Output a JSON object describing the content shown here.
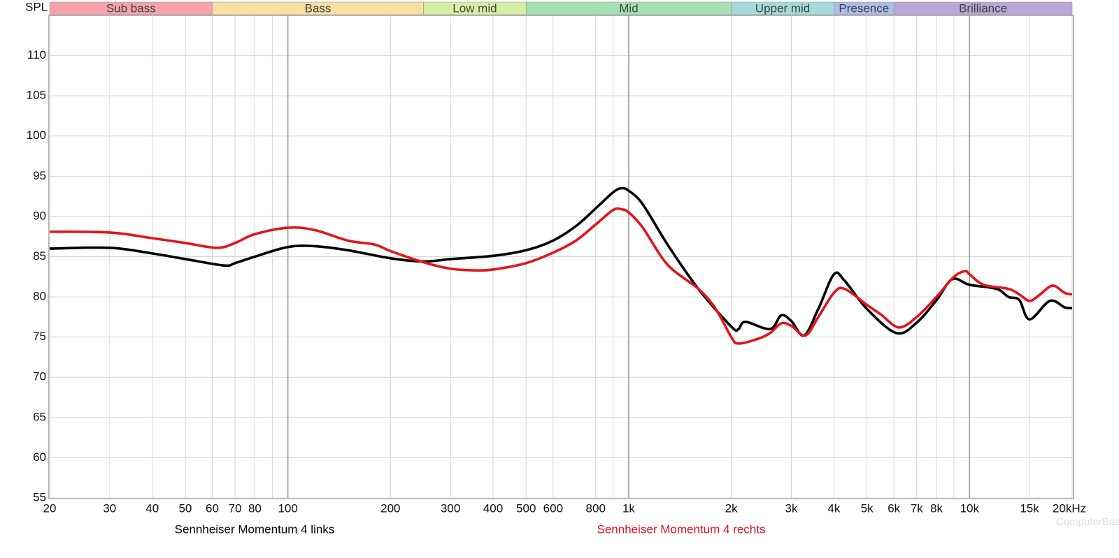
{
  "chart_data": {
    "type": "line",
    "y_label": "SPL",
    "xscale": "log",
    "xlim": [
      20,
      20000
    ],
    "ylim": [
      55,
      115
    ],
    "grid": true,
    "xticks": [
      20,
      30,
      40,
      50,
      60,
      70,
      80,
      100,
      200,
      300,
      400,
      500,
      600,
      800,
      {
        "value": 1000,
        "label": "1k"
      },
      {
        "value": 2000,
        "label": "2k"
      },
      {
        "value": 3000,
        "label": "3k"
      },
      {
        "value": 4000,
        "label": "4k"
      },
      {
        "value": 5000,
        "label": "5k"
      },
      {
        "value": 6000,
        "label": "6k"
      },
      {
        "value": 7000,
        "label": "7k"
      },
      {
        "value": 8000,
        "label": "8k"
      },
      {
        "value": 10000,
        "label": "10k"
      },
      {
        "value": 15000,
        "label": "15k"
      },
      {
        "value": 20000,
        "label": "20kHz"
      }
    ],
    "x_minor_ticks": [
      90,
      900,
      9000
    ],
    "yticks": [
      55,
      60,
      65,
      70,
      75,
      80,
      85,
      90,
      95,
      100,
      105,
      110
    ],
    "bands": [
      {
        "name": "Sub bass",
        "start": 20,
        "end": 60,
        "color": "#f4a3aa"
      },
      {
        "name": "Bass",
        "start": 60,
        "end": 250,
        "color": "#f7e0a2"
      },
      {
        "name": "Low mid",
        "start": 250,
        "end": 500,
        "color": "#d8eea6"
      },
      {
        "name": "Mid",
        "start": 500,
        "end": 2000,
        "color": "#a6e2b1"
      },
      {
        "name": "Upper mid",
        "start": 2000,
        "end": 4000,
        "color": "#a4dbd8"
      },
      {
        "name": "Presence",
        "start": 4000,
        "end": 6000,
        "color": "#abbde8"
      },
      {
        "name": "Brilliance",
        "start": 6000,
        "end": 20000,
        "color": "#b9a8d6"
      }
    ],
    "series": [
      {
        "name": "Sennheiser Momentum 4 links",
        "color": "#000000",
        "x": [
          20,
          30,
          40,
          50,
          65,
          70,
          80,
          100,
          120,
          150,
          200,
          250,
          300,
          400,
          500,
          600,
          700,
          800,
          900,
          950,
          1000,
          1100,
          1300,
          1600,
          2000,
          2100,
          2200,
          2600,
          2800,
          3000,
          3270,
          3600,
          4000,
          4300,
          5000,
          6100,
          7000,
          8000,
          8900,
          10000,
          12000,
          13000,
          14000,
          15000,
          17200,
          19000,
          20000
        ],
        "values": [
          86.0,
          86.1,
          85.4,
          84.7,
          83.9,
          84.2,
          85.0,
          86.2,
          86.3,
          85.8,
          84.8,
          84.4,
          84.7,
          85.1,
          85.8,
          87.0,
          88.8,
          91.0,
          93.0,
          93.5,
          93.2,
          91.5,
          86.5,
          81.0,
          76.3,
          76.0,
          76.9,
          76.0,
          77.7,
          77.0,
          75.2,
          78.5,
          82.8,
          82.0,
          78.5,
          75.5,
          76.8,
          79.6,
          82.2,
          81.5,
          81.0,
          80.0,
          79.6,
          77.2,
          79.5,
          78.7,
          78.6
        ]
      },
      {
        "name": "Sennheiser Momentum 4 rechts",
        "color": "#e3141b",
        "x": [
          20,
          30,
          40,
          50,
          62,
          70,
          80,
          100,
          120,
          150,
          180,
          200,
          250,
          300,
          350,
          400,
          500,
          600,
          700,
          800,
          900,
          950,
          1000,
          1100,
          1300,
          1600,
          1800,
          2000,
          2100,
          2400,
          2600,
          2800,
          3000,
          3300,
          3600,
          4000,
          4300,
          5000,
          5500,
          6200,
          7000,
          8000,
          9000,
          9700,
          10000,
          11000,
          13000,
          14000,
          15000,
          16000,
          17500,
          19000,
          20000
        ],
        "values": [
          88.1,
          88.0,
          87.3,
          86.7,
          86.1,
          86.7,
          87.8,
          88.6,
          88.3,
          87.0,
          86.5,
          85.7,
          84.3,
          83.5,
          83.3,
          83.4,
          84.2,
          85.5,
          87.0,
          89.0,
          90.8,
          90.9,
          90.5,
          88.6,
          84.0,
          81.0,
          78.5,
          75.0,
          74.2,
          74.8,
          75.5,
          76.7,
          76.4,
          75.2,
          77.5,
          80.5,
          81.0,
          79.0,
          77.8,
          76.2,
          77.5,
          80.0,
          82.5,
          83.2,
          82.8,
          81.5,
          81.0,
          80.3,
          79.5,
          80.2,
          81.4,
          80.5,
          80.3
        ]
      }
    ],
    "watermark": "ComputerBase"
  }
}
